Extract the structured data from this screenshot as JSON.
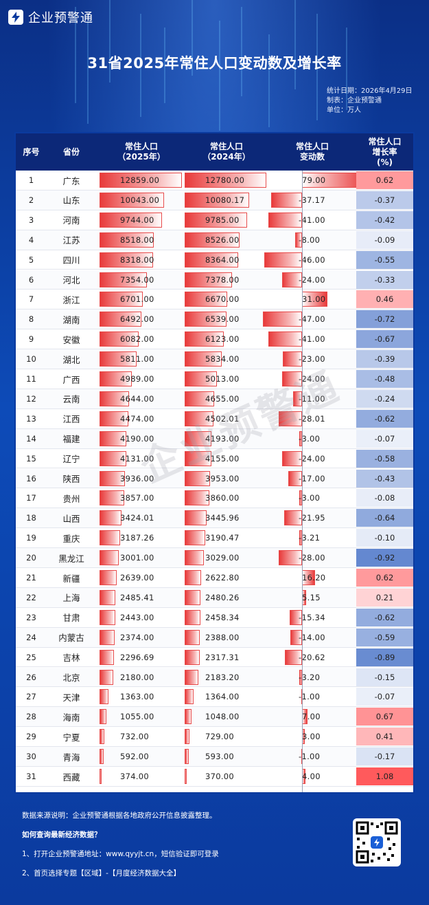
{
  "brand": {
    "name": "企业预警通"
  },
  "title": "31省2025年常住人口变动数及增长率",
  "meta": {
    "date": "统计日期：2026年4月29日",
    "maker": "制表：企业预警通",
    "unit": "单位：万人"
  },
  "headers": {
    "idx": "序号",
    "prov": "省份",
    "pop2025_l1": "常住人口",
    "pop2025_l2": "（2025年）",
    "pop2024_l1": "常住人口",
    "pop2024_l2": "（2024年）",
    "change_l1": "常住人口",
    "change_l2": "变动数",
    "rate_l1": "常住人口",
    "rate_l2": "增长率",
    "rate_l3": "(%)"
  },
  "colors": {
    "header_bg": "#0c2878",
    "bar_red": "#e83a3a",
    "rate_pos": "#f4777c",
    "rate_neg": "#4a7bc8"
  },
  "chart_data": {
    "type": "table",
    "columns": [
      "序号",
      "省份",
      "常住人口（2025年）",
      "常住人口（2024年）",
      "常住人口变动数",
      "常住人口增长率(%)"
    ],
    "rows": [
      {
        "idx": "1",
        "prov": "广东",
        "p2025": "12859.00",
        "p2024": "12780.00",
        "chg": "79.00",
        "rate": "0.62",
        "v2025": 12859,
        "v2024": 12780,
        "vchg": 79,
        "vrate": 0.62
      },
      {
        "idx": "2",
        "prov": "山东",
        "p2025": "10043.00",
        "p2024": "10080.17",
        "chg": "-37.17",
        "rate": "-0.37",
        "v2025": 10043,
        "v2024": 10080.17,
        "vchg": -37.17,
        "vrate": -0.37
      },
      {
        "idx": "3",
        "prov": "河南",
        "p2025": "9744.00",
        "p2024": "9785.00",
        "chg": "-41.00",
        "rate": "-0.42",
        "v2025": 9744,
        "v2024": 9785,
        "vchg": -41,
        "vrate": -0.42
      },
      {
        "idx": "4",
        "prov": "江苏",
        "p2025": "8518.00",
        "p2024": "8526.00",
        "chg": "-8.00",
        "rate": "-0.09",
        "v2025": 8518,
        "v2024": 8526,
        "vchg": -8,
        "vrate": -0.09
      },
      {
        "idx": "5",
        "prov": "四川",
        "p2025": "8318.00",
        "p2024": "8364.00",
        "chg": "-46.00",
        "rate": "-0.55",
        "v2025": 8318,
        "v2024": 8364,
        "vchg": -46,
        "vrate": -0.55
      },
      {
        "idx": "6",
        "prov": "河北",
        "p2025": "7354.00",
        "p2024": "7378.00",
        "chg": "-24.00",
        "rate": "-0.33",
        "v2025": 7354,
        "v2024": 7378,
        "vchg": -24,
        "vrate": -0.33
      },
      {
        "idx": "7",
        "prov": "浙江",
        "p2025": "6701.00",
        "p2024": "6670.00",
        "chg": "31.00",
        "rate": "0.46",
        "v2025": 6701,
        "v2024": 6670,
        "vchg": 31,
        "vrate": 0.46
      },
      {
        "idx": "8",
        "prov": "湖南",
        "p2025": "6492.00",
        "p2024": "6539.00",
        "chg": "-47.00",
        "rate": "-0.72",
        "v2025": 6492,
        "v2024": 6539,
        "vchg": -47,
        "vrate": -0.72
      },
      {
        "idx": "9",
        "prov": "安徽",
        "p2025": "6082.00",
        "p2024": "6123.00",
        "chg": "-41.00",
        "rate": "-0.67",
        "v2025": 6082,
        "v2024": 6123,
        "vchg": -41,
        "vrate": -0.67
      },
      {
        "idx": "10",
        "prov": "湖北",
        "p2025": "5811.00",
        "p2024": "5834.00",
        "chg": "-23.00",
        "rate": "-0.39",
        "v2025": 5811,
        "v2024": 5834,
        "vchg": -23,
        "vrate": -0.39
      },
      {
        "idx": "11",
        "prov": "广西",
        "p2025": "4989.00",
        "p2024": "5013.00",
        "chg": "-24.00",
        "rate": "-0.48",
        "v2025": 4989,
        "v2024": 5013,
        "vchg": -24,
        "vrate": -0.48
      },
      {
        "idx": "12",
        "prov": "云南",
        "p2025": "4644.00",
        "p2024": "4655.00",
        "chg": "-11.00",
        "rate": "-0.24",
        "v2025": 4644,
        "v2024": 4655,
        "vchg": -11,
        "vrate": -0.24
      },
      {
        "idx": "13",
        "prov": "江西",
        "p2025": "4474.00",
        "p2024": "4502.01",
        "chg": "-28.01",
        "rate": "-0.62",
        "v2025": 4474,
        "v2024": 4502.01,
        "vchg": -28.01,
        "vrate": -0.62
      },
      {
        "idx": "14",
        "prov": "福建",
        "p2025": "4190.00",
        "p2024": "4193.00",
        "chg": "-3.00",
        "rate": "-0.07",
        "v2025": 4190,
        "v2024": 4193,
        "vchg": -3,
        "vrate": -0.07
      },
      {
        "idx": "15",
        "prov": "辽宁",
        "p2025": "4131.00",
        "p2024": "4155.00",
        "chg": "-24.00",
        "rate": "-0.58",
        "v2025": 4131,
        "v2024": 4155,
        "vchg": -24,
        "vrate": -0.58
      },
      {
        "idx": "16",
        "prov": "陕西",
        "p2025": "3936.00",
        "p2024": "3953.00",
        "chg": "-17.00",
        "rate": "-0.43",
        "v2025": 3936,
        "v2024": 3953,
        "vchg": -17,
        "vrate": -0.43
      },
      {
        "idx": "17",
        "prov": "贵州",
        "p2025": "3857.00",
        "p2024": "3860.00",
        "chg": "-3.00",
        "rate": "-0.08",
        "v2025": 3857,
        "v2024": 3860,
        "vchg": -3,
        "vrate": -0.08
      },
      {
        "idx": "18",
        "prov": "山西",
        "p2025": "3424.01",
        "p2024": "3445.96",
        "chg": "-21.95",
        "rate": "-0.64",
        "v2025": 3424.01,
        "v2024": 3445.96,
        "vchg": -21.95,
        "vrate": -0.64
      },
      {
        "idx": "19",
        "prov": "重庆",
        "p2025": "3187.26",
        "p2024": "3190.47",
        "chg": "-3.21",
        "rate": "-0.10",
        "v2025": 3187.26,
        "v2024": 3190.47,
        "vchg": -3.21,
        "vrate": -0.1
      },
      {
        "idx": "20",
        "prov": "黑龙江",
        "p2025": "3001.00",
        "p2024": "3029.00",
        "chg": "-28.00",
        "rate": "-0.92",
        "v2025": 3001,
        "v2024": 3029,
        "vchg": -28,
        "vrate": -0.92
      },
      {
        "idx": "21",
        "prov": "新疆",
        "p2025": "2639.00",
        "p2024": "2622.80",
        "chg": "16.20",
        "rate": "0.62",
        "v2025": 2639,
        "v2024": 2622.8,
        "vchg": 16.2,
        "vrate": 0.62
      },
      {
        "idx": "22",
        "prov": "上海",
        "p2025": "2485.41",
        "p2024": "2480.26",
        "chg": "5.15",
        "rate": "0.21",
        "v2025": 2485.41,
        "v2024": 2480.26,
        "vchg": 5.15,
        "vrate": 0.21
      },
      {
        "idx": "23",
        "prov": "甘肃",
        "p2025": "2443.00",
        "p2024": "2458.34",
        "chg": "-15.34",
        "rate": "-0.62",
        "v2025": 2443,
        "v2024": 2458.34,
        "vchg": -15.34,
        "vrate": -0.62
      },
      {
        "idx": "24",
        "prov": "内蒙古",
        "p2025": "2374.00",
        "p2024": "2388.00",
        "chg": "-14.00",
        "rate": "-0.59",
        "v2025": 2374,
        "v2024": 2388,
        "vchg": -14,
        "vrate": -0.59
      },
      {
        "idx": "25",
        "prov": "吉林",
        "p2025": "2296.69",
        "p2024": "2317.31",
        "chg": "-20.62",
        "rate": "-0.89",
        "v2025": 2296.69,
        "v2024": 2317.31,
        "vchg": -20.62,
        "vrate": -0.89
      },
      {
        "idx": "26",
        "prov": "北京",
        "p2025": "2180.00",
        "p2024": "2183.20",
        "chg": "-3.20",
        "rate": "-0.15",
        "v2025": 2180,
        "v2024": 2183.2,
        "vchg": -3.2,
        "vrate": -0.15
      },
      {
        "idx": "27",
        "prov": "天津",
        "p2025": "1363.00",
        "p2024": "1364.00",
        "chg": "-1.00",
        "rate": "-0.07",
        "v2025": 1363,
        "v2024": 1364,
        "vchg": -1,
        "vrate": -0.07
      },
      {
        "idx": "28",
        "prov": "海南",
        "p2025": "1055.00",
        "p2024": "1048.00",
        "chg": "7.00",
        "rate": "0.67",
        "v2025": 1055,
        "v2024": 1048,
        "vchg": 7,
        "vrate": 0.67
      },
      {
        "idx": "29",
        "prov": "宁夏",
        "p2025": "732.00",
        "p2024": "729.00",
        "chg": "3.00",
        "rate": "0.41",
        "v2025": 732,
        "v2024": 729,
        "vchg": 3,
        "vrate": 0.41
      },
      {
        "idx": "30",
        "prov": "青海",
        "p2025": "592.00",
        "p2024": "593.00",
        "chg": "-1.00",
        "rate": "-0.17",
        "v2025": 592,
        "v2024": 593,
        "vchg": -1,
        "vrate": -0.17
      },
      {
        "idx": "31",
        "prov": "西藏",
        "p2025": "374.00",
        "p2024": "370.00",
        "chg": "4.00",
        "rate": "1.08",
        "v2025": 374,
        "v2024": 370,
        "vchg": 4,
        "vrate": 1.08
      }
    ]
  },
  "watermark": "企业预警通",
  "footer": {
    "source": "数据来源说明：企业预警通根据各地政府公开信息披露整理。",
    "howto": "如何查询最新经济数据？",
    "step1": "1、打开企业预警通地址：www.qyyjt.cn，短信验证即可登录",
    "step2": "2、首页选择专题【区域】-【月度经济数据大全】"
  }
}
